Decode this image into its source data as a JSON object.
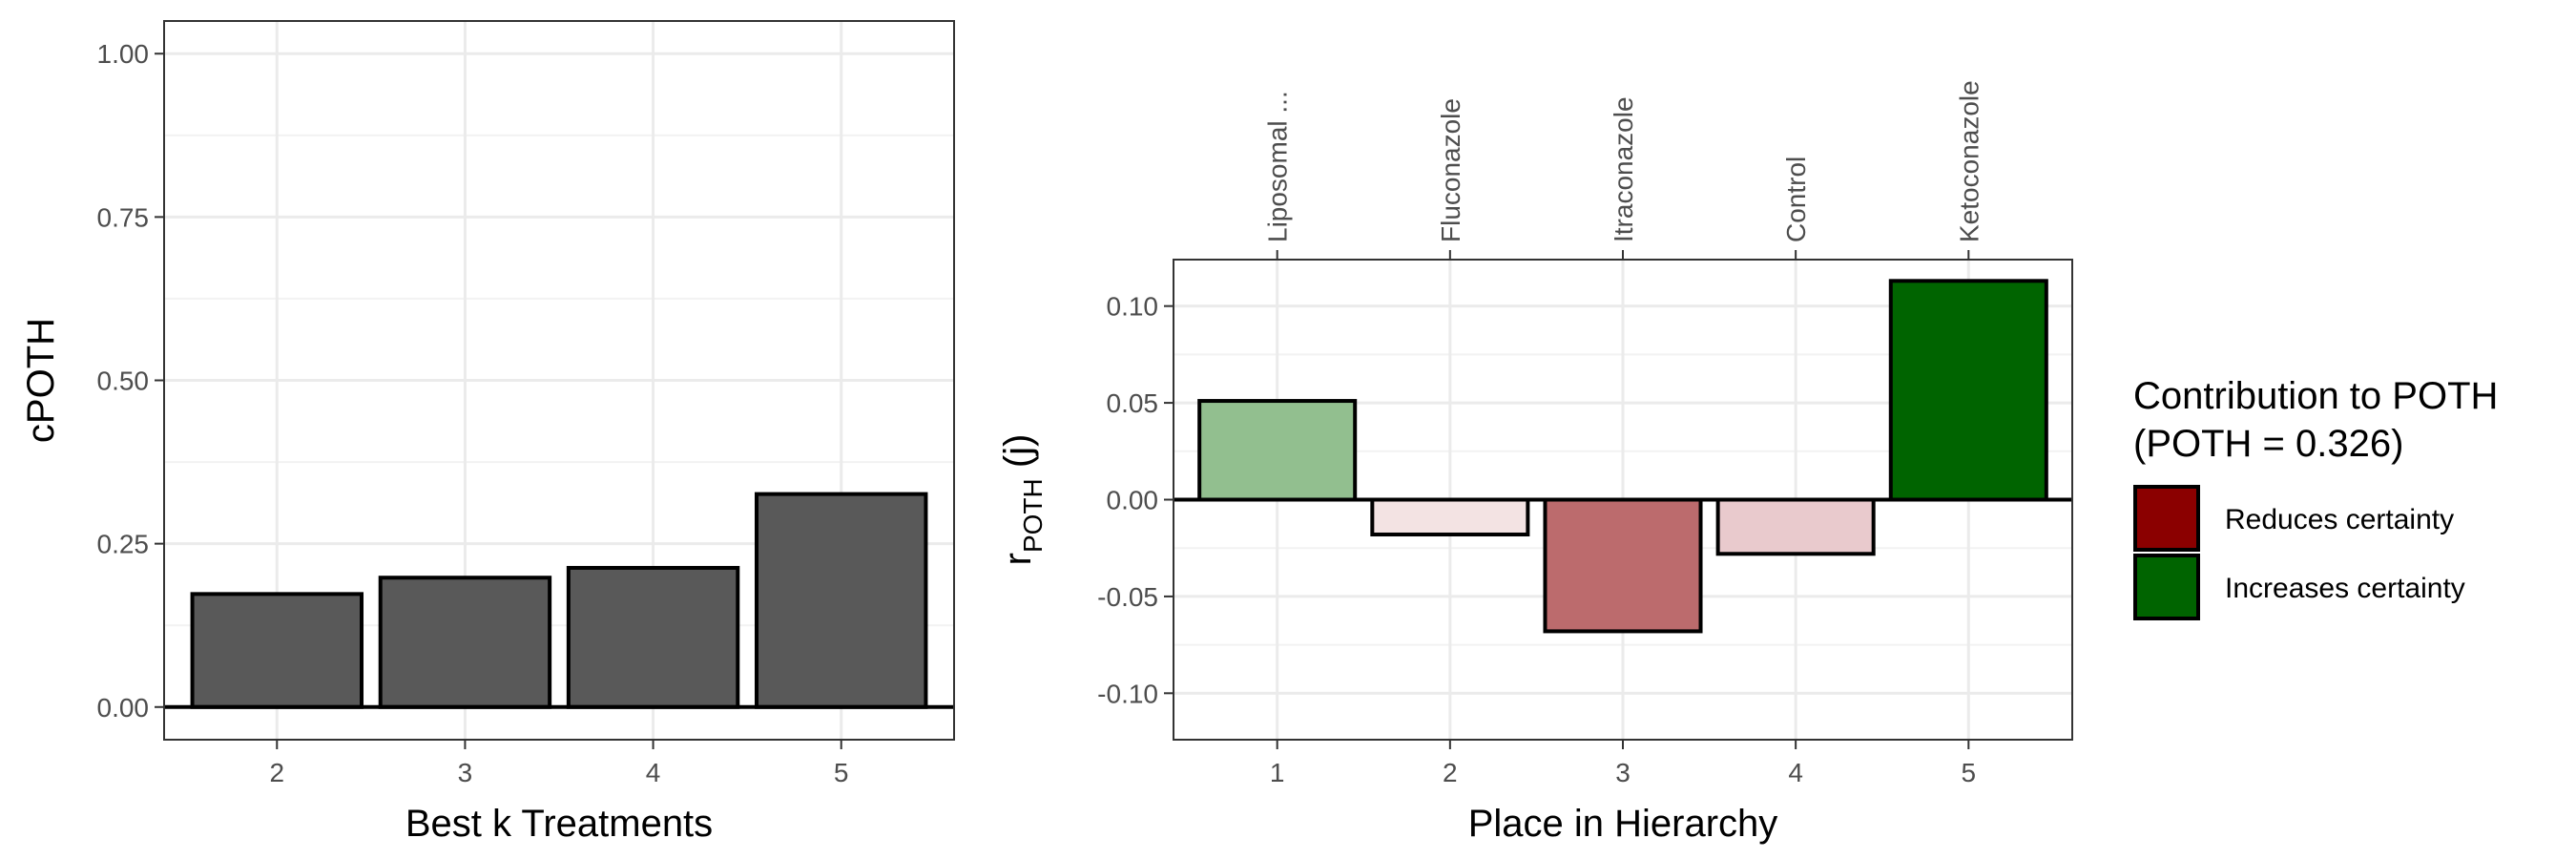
{
  "chart_data": [
    {
      "type": "bar",
      "categories": [
        "2",
        "3",
        "4",
        "5"
      ],
      "values": [
        0.173,
        0.198,
        0.213,
        0.326
      ],
      "xlabel": "Best k Treatments",
      "ylabel": "cPOTH",
      "ylim": [
        -0.05,
        1.05
      ],
      "yticks": [
        "0.00",
        "0.25",
        "0.50",
        "0.75",
        "1.00"
      ],
      "ytick_values": [
        0,
        0.25,
        0.5,
        0.75,
        1.0
      ],
      "grid": true,
      "bar_color": "#595959"
    },
    {
      "type": "bar",
      "categories": [
        "1",
        "2",
        "3",
        "4",
        "5"
      ],
      "top_labels": [
        "Liposomal ...",
        "Fluconazole",
        "Itraconazole",
        "Control",
        "Ketoconazole"
      ],
      "values": [
        0.051,
        -0.018,
        -0.068,
        -0.028,
        0.113
      ],
      "bar_colors": [
        "#92bf8f",
        "#f3e3e3",
        "#bc6b6d",
        "#e9cacd",
        "#006400"
      ],
      "xlabel": "Place in Hierarchy",
      "ylabel_main": "r",
      "ylabel_sub": "POTH",
      "ylabel_tail": " (j)",
      "ylim": [
        -0.124,
        0.124
      ],
      "yticks": [
        "-0.10",
        "-0.05",
        "0.00",
        "0.05",
        "0.10"
      ],
      "ytick_values": [
        -0.1,
        -0.05,
        0,
        0.05,
        0.1
      ],
      "grid": true,
      "legend": {
        "title_line1": "Contribution to POTH",
        "title_line2": "(POTH = 0.326)",
        "placement": "right",
        "entries": [
          {
            "label": "Reduces certainty",
            "color": "#8b0000"
          },
          {
            "label": "Increases certainty",
            "color": "#006400"
          }
        ]
      }
    }
  ]
}
